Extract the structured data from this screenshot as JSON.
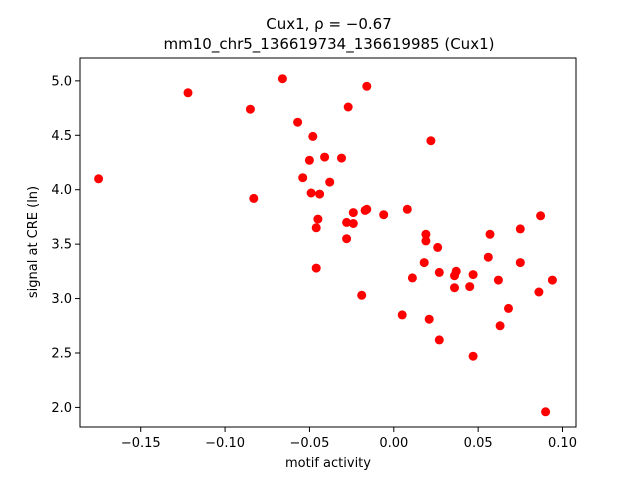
{
  "chart_data": {
    "type": "scatter",
    "title_line1": "Cux1, ρ = −0.67",
    "title_line2": "mm10_chr5_136619734_136619985 (Cux1)",
    "xlabel": "motif activity",
    "ylabel": "signal at CRE (ln)",
    "xlim": [
      -0.186,
      0.108
    ],
    "ylim": [
      1.82,
      5.21
    ],
    "xticks": [
      -0.15,
      -0.1,
      -0.05,
      0.0,
      0.05,
      0.1
    ],
    "xtick_labels": [
      "−0.15",
      "−0.10",
      "−0.05",
      "0.00",
      "0.05",
      "0.10"
    ],
    "yticks": [
      2.0,
      2.5,
      3.0,
      3.5,
      4.0,
      4.5,
      5.0
    ],
    "ytick_labels": [
      "2.0",
      "2.5",
      "3.0",
      "3.5",
      "4.0",
      "4.5",
      "5.0"
    ],
    "grid": false,
    "point_color": "#ff0000",
    "points": [
      {
        "x": -0.175,
        "y": 4.1
      },
      {
        "x": -0.122,
        "y": 4.89
      },
      {
        "x": -0.085,
        "y": 4.74
      },
      {
        "x": -0.083,
        "y": 3.92
      },
      {
        "x": -0.066,
        "y": 5.02
      },
      {
        "x": -0.057,
        "y": 4.62
      },
      {
        "x": -0.054,
        "y": 4.11
      },
      {
        "x": -0.05,
        "y": 4.27
      },
      {
        "x": -0.049,
        "y": 3.97
      },
      {
        "x": -0.048,
        "y": 4.49
      },
      {
        "x": -0.046,
        "y": 3.65
      },
      {
        "x": -0.046,
        "y": 3.28
      },
      {
        "x": -0.045,
        "y": 3.73
      },
      {
        "x": -0.044,
        "y": 3.96
      },
      {
        "x": -0.041,
        "y": 4.3
      },
      {
        "x": -0.038,
        "y": 4.07
      },
      {
        "x": -0.031,
        "y": 4.29
      },
      {
        "x": -0.028,
        "y": 3.7
      },
      {
        "x": -0.028,
        "y": 3.55
      },
      {
        "x": -0.027,
        "y": 4.76
      },
      {
        "x": -0.024,
        "y": 3.79
      },
      {
        "x": -0.024,
        "y": 3.69
      },
      {
        "x": -0.019,
        "y": 3.03
      },
      {
        "x": -0.017,
        "y": 3.81
      },
      {
        "x": -0.016,
        "y": 3.82
      },
      {
        "x": -0.016,
        "y": 4.95
      },
      {
        "x": -0.006,
        "y": 3.77
      },
      {
        "x": 0.005,
        "y": 2.85
      },
      {
        "x": 0.008,
        "y": 3.82
      },
      {
        "x": 0.011,
        "y": 3.19
      },
      {
        "x": 0.018,
        "y": 3.33
      },
      {
        "x": 0.019,
        "y": 3.59
      },
      {
        "x": 0.019,
        "y": 3.53
      },
      {
        "x": 0.021,
        "y": 2.81
      },
      {
        "x": 0.022,
        "y": 4.45
      },
      {
        "x": 0.026,
        "y": 3.47
      },
      {
        "x": 0.027,
        "y": 3.24
      },
      {
        "x": 0.027,
        "y": 2.62
      },
      {
        "x": 0.036,
        "y": 3.21
      },
      {
        "x": 0.036,
        "y": 3.1
      },
      {
        "x": 0.037,
        "y": 3.25
      },
      {
        "x": 0.045,
        "y": 3.11
      },
      {
        "x": 0.047,
        "y": 3.22
      },
      {
        "x": 0.047,
        "y": 2.47
      },
      {
        "x": 0.056,
        "y": 3.38
      },
      {
        "x": 0.057,
        "y": 3.59
      },
      {
        "x": 0.062,
        "y": 3.17
      },
      {
        "x": 0.063,
        "y": 2.75
      },
      {
        "x": 0.068,
        "y": 2.91
      },
      {
        "x": 0.075,
        "y": 3.64
      },
      {
        "x": 0.075,
        "y": 3.33
      },
      {
        "x": 0.086,
        "y": 3.06
      },
      {
        "x": 0.087,
        "y": 3.76
      },
      {
        "x": 0.09,
        "y": 1.96
      },
      {
        "x": 0.094,
        "y": 3.17
      }
    ]
  }
}
